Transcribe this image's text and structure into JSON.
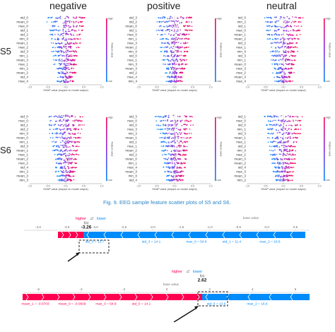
{
  "columns": [
    "negative",
    "positive",
    "neutral"
  ],
  "rows": [
    "S5",
    "S6"
  ],
  "beeswarm": {
    "xlabel": "SHAP value (impact on model output)",
    "colorbar_label": "Feature value",
    "colorbar_high": "High",
    "colorbar_low": "Low",
    "panels": [
      {
        "row": "S5",
        "col": "negative",
        "features": [
          "std_0",
          "mean_0",
          "max_0",
          "std_1",
          "std_2",
          "min_0",
          "mean_1",
          "max_2",
          "std_3",
          "min_1",
          "mean_3",
          "max_1",
          "min_2",
          "mean_2",
          "std_4",
          "max_4"
        ],
        "ticks": [
          "-1.0",
          "-0.5",
          "0.0",
          "0.5",
          "1.0"
        ]
      },
      {
        "row": "S5",
        "col": "positive",
        "features": [
          "std_3",
          "std_2",
          "mean_0",
          "std_1",
          "max_0",
          "min_1",
          "max_3",
          "mean_2",
          "min_0",
          "std_0",
          "max_1",
          "min_3",
          "mean_3",
          "std_2",
          "max_4",
          "min_4"
        ],
        "ticks": [
          "-1.0",
          "-0.5",
          "0.0",
          "0.5",
          "1.0"
        ]
      },
      {
        "row": "S5",
        "col": "neutral",
        "features": [
          "std_0",
          "min_2",
          "std_1",
          "max_0",
          "mean_1",
          "mean_2",
          "std_2",
          "max_1",
          "min_0",
          "std_3",
          "min_1",
          "mean_0",
          "max_3",
          "max_2",
          "mean_3",
          "max_4"
        ],
        "ticks": [
          "-1.0",
          "-0.5",
          "0.0",
          "0.5",
          "1.0"
        ]
      },
      {
        "row": "S6",
        "col": "negative",
        "features": [
          "std_0",
          "max_0",
          "std_1",
          "std_2",
          "min_0",
          "mean_0",
          "min_1",
          "std_3",
          "mean_1",
          "max_1",
          "mean_2",
          "max_2",
          "std_4",
          "min_2",
          "mean_3",
          "min_3"
        ],
        "ticks": [
          "-1.0",
          "-0.5",
          "0.0",
          "0.5",
          "1.0"
        ]
      },
      {
        "row": "S6",
        "col": "positive",
        "features": [
          "std_3",
          "max_0",
          "std_0",
          "max_3",
          "min_2",
          "mean_1",
          "std_1",
          "max_1",
          "mean_2",
          "std_2",
          "mean_0",
          "min_1",
          "max_4",
          "mean_3",
          "min_0",
          "std_4"
        ],
        "ticks": [
          "-1.0",
          "-0.5",
          "0.0",
          "0.5",
          "1.0"
        ]
      },
      {
        "row": "S6",
        "col": "neutral",
        "features": [
          "std_1",
          "max_0",
          "std_0",
          "min_1",
          "std_3",
          "mean_1",
          "max_1",
          "std_2",
          "min_0",
          "max_2",
          "mean_0",
          "mean_2",
          "std_4",
          "max_3",
          "mean_3",
          "min_2"
        ],
        "ticks": [
          "-1.0",
          "-0.5",
          "0.0",
          "0.5",
          "1.0"
        ]
      }
    ]
  },
  "caption_fig9": {
    "tag": "Fig. 9.",
    "text": "EEG sample feature scatter plots of S5 and S6."
  },
  "force1": {
    "legend_higher": "higher",
    "legend_lower": "lower",
    "fx_label": "f(x)",
    "fx_value": "-3.26",
    "base_label": "base value",
    "ticks": [
      "-4.0",
      "-3.5",
      "-3.0",
      "-2.5",
      "-2.0",
      "-1.5",
      "-1.0",
      "-0.5",
      "0.0",
      "0.5"
    ],
    "labels": [
      "std_0 = 13.7",
      "std_3 = 14.1",
      "max_0 = 54.8",
      "std_1 = 11.4",
      "max_2 = 16.6"
    ]
  },
  "force2": {
    "legend_higher": "higher",
    "legend_lower": "lower",
    "fx_label": "f(x)",
    "fx_value": "2.62",
    "base_label": "base value",
    "ticks": [
      "-6",
      "-4",
      "-2",
      "0",
      "2",
      "4",
      "6"
    ],
    "labels": [
      "mean_1 = -0.0703",
      "mean_0 = -0.0609",
      "max_0 = 54.8",
      "std_0 = 14.1",
      "std_3 = 13.6",
      "max_2 = 16.6"
    ]
  },
  "colors": {
    "red": "#ff0051",
    "blue": "#008bfb",
    "purple": "#8a2be2",
    "caption": "#2a86c8"
  }
}
